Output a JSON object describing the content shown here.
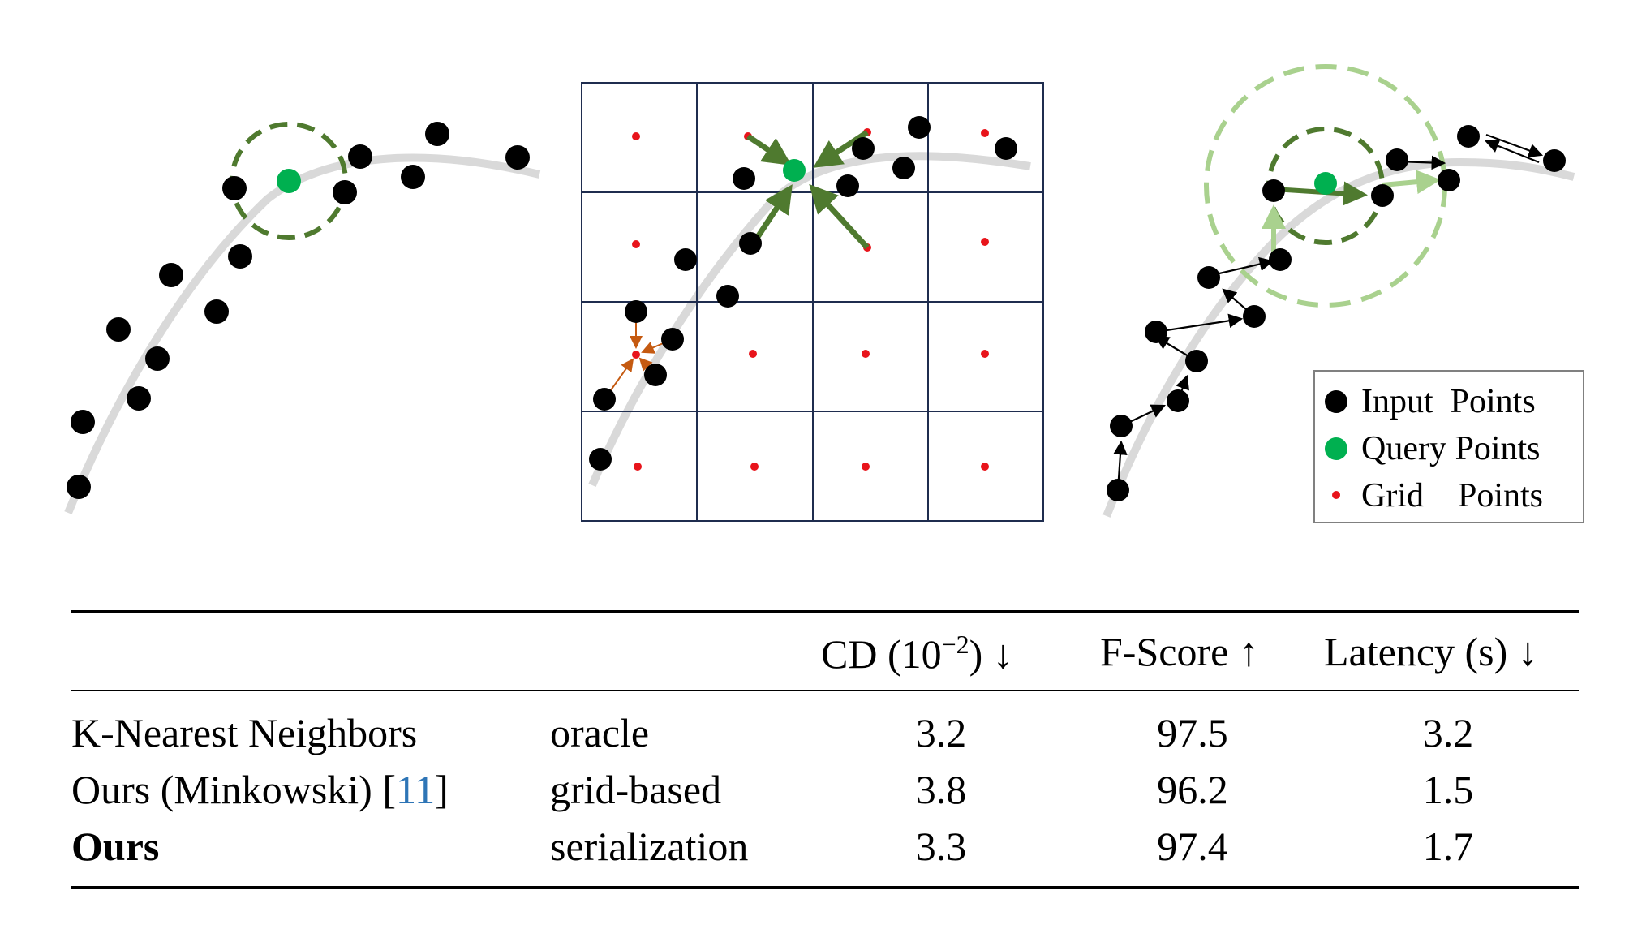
{
  "legend": {
    "items": [
      {
        "label": "Input  Points",
        "kind": "input"
      },
      {
        "label": "Query Points",
        "kind": "query"
      },
      {
        "label": "Grid    Points",
        "kind": "grid"
      }
    ]
  },
  "colors": {
    "input_point": "#000000",
    "query_point": "#00b050",
    "grid_point": "#e8141b",
    "curve": "#d9d9d9",
    "dark_green": "#4f7a2f",
    "light_green": "#a9d18e",
    "grid_line": "#1f2d4f",
    "orange": "#c55a11",
    "citation": "#2e75b6"
  },
  "table": {
    "headers": [
      "",
      "",
      "CD (10",
      "F-Score ↑",
      "Latency (s) ↓"
    ],
    "cd_header": {
      "base": "CD (10",
      "sup": "−2",
      "tail": ") ↓"
    },
    "rows": [
      {
        "method": "K-Nearest Neighbors",
        "cite": "",
        "type": "oracle",
        "cd": "3.2",
        "fscore": "97.5",
        "latency": "3.2",
        "bold": false
      },
      {
        "method": "Ours (Minkowski) [",
        "cite": "11",
        "cite_close": "]",
        "type": "grid-based",
        "cd": "3.8",
        "fscore": "96.2",
        "latency": "1.5",
        "bold": false
      },
      {
        "method": "Ours",
        "cite": "",
        "type": "serialization",
        "cd": "3.3",
        "fscore": "97.4",
        "latency": "1.7",
        "bold": true
      }
    ]
  }
}
